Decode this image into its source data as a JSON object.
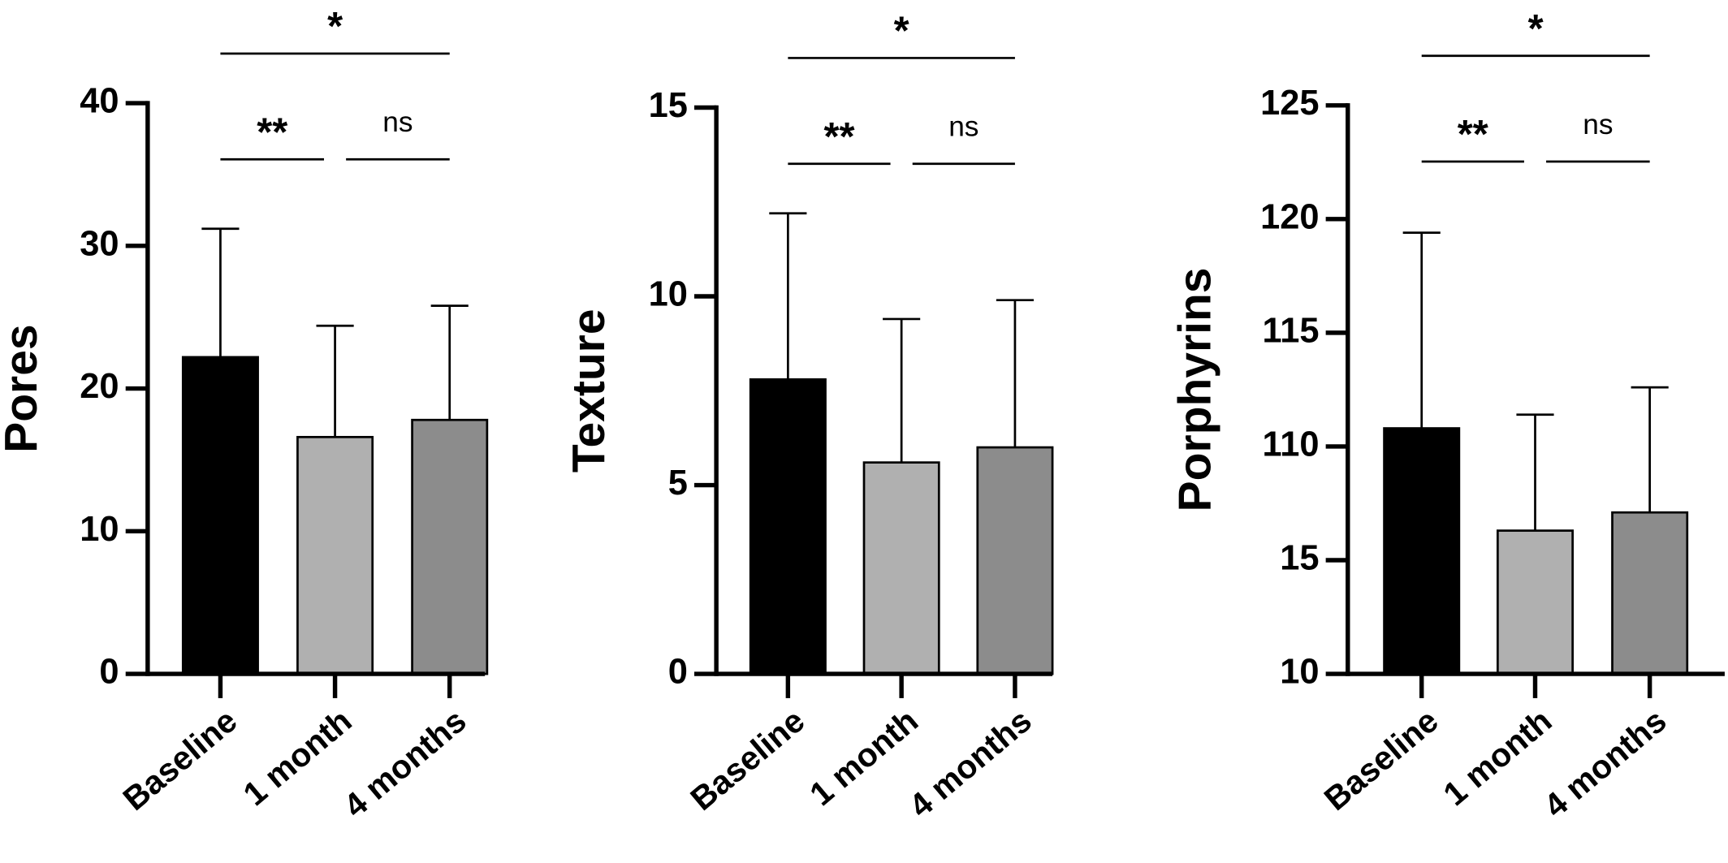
{
  "chart_data": [
    {
      "type": "bar",
      "ylabel": "Pores",
      "categories": [
        "Baseline",
        "1 month",
        "4 months"
      ],
      "values": [
        22.2,
        16.6,
        17.8
      ],
      "errors": [
        9.0,
        7.8,
        8.0
      ],
      "colors": [
        "#000000",
        "#b0b0b0",
        "#8c8c8c"
      ],
      "ylim": [
        0,
        40
      ],
      "yticks": [
        0,
        10,
        20,
        30,
        40
      ],
      "annotations": [
        "*",
        "**",
        "ns"
      ]
    },
    {
      "type": "bar",
      "ylabel": "Texture",
      "categories": [
        "Baseline",
        "1 month",
        "4 months"
      ],
      "values": [
        7.8,
        5.6,
        6.0
      ],
      "errors": [
        4.4,
        3.8,
        3.9
      ],
      "colors": [
        "#000000",
        "#b0b0b0",
        "#8c8c8c"
      ],
      "ylim": [
        0,
        15
      ],
      "yticks": [
        0,
        5,
        10,
        15
      ],
      "annotations": [
        "*",
        "**",
        "ns"
      ]
    },
    {
      "type": "bar",
      "ylabel": "Porphyrins",
      "categories": [
        "Baseline",
        "1 month",
        "4 months"
      ],
      "values": [
        110.8,
        106.3,
        107.1
      ],
      "errors": [
        8.6,
        5.1,
        5.5
      ],
      "colors": [
        "#000000",
        "#b0b0b0",
        "#8c8c8c"
      ],
      "ylim": [
        100,
        125
      ],
      "yticks": [
        {
          "value": 100,
          "label": "10"
        },
        {
          "value": 105,
          "label": "15"
        },
        110,
        115,
        120,
        125
      ],
      "annotations": [
        "*",
        "**",
        "ns"
      ]
    }
  ]
}
